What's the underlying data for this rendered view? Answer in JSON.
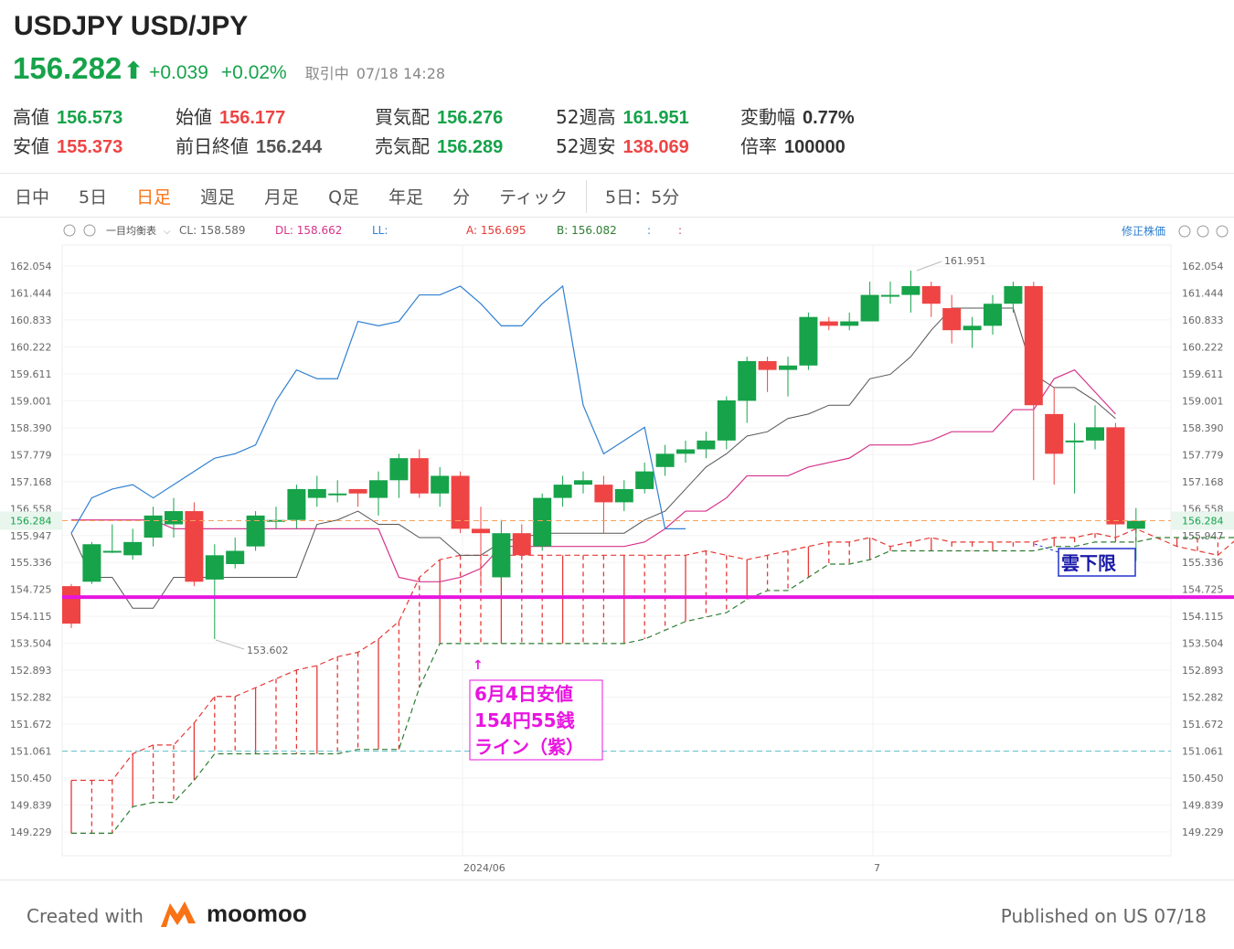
{
  "header": {
    "title": "USDJPY USD/JPY",
    "price": "156.282",
    "change": "+0.039",
    "change_pct": "+0.02%",
    "status": "取引中",
    "timestamp": "07/18 14:28"
  },
  "stats": {
    "high": {
      "label": "高値",
      "value": "156.573"
    },
    "low": {
      "label": "安値",
      "value": "155.373"
    },
    "open": {
      "label": "始値",
      "value": "156.177"
    },
    "prev_close": {
      "label": "前日終値",
      "value": "156.244"
    },
    "bid": {
      "label": "買気配",
      "value": "156.276"
    },
    "ask": {
      "label": "売気配",
      "value": "156.289"
    },
    "week52_high": {
      "label": "52週高",
      "value": "161.951"
    },
    "week52_low": {
      "label": "52週安",
      "value": "138.069"
    },
    "amplitude": {
      "label": "変動幅",
      "value": "0.77%"
    },
    "multiplier": {
      "label": "倍率",
      "value": "100000"
    }
  },
  "tabs": [
    "日中",
    "5日",
    "日足",
    "週足",
    "月足",
    "Q足",
    "年足",
    "分",
    "ティック",
    "5日：5分"
  ],
  "active_tab": "日足",
  "toolbar": {
    "indicator": "一目均衡表",
    "cl": "CL: 158.589",
    "dl": "DL: 158.662",
    "ll": "LL:",
    "a": "A: 156.695",
    "b": "B: 156.082",
    "c1": ":",
    "c2": ":",
    "adjusted": "修正株価"
  },
  "annotations": {
    "low_note": "6月4日安値\n154円55銭\nライン（紫）",
    "cloud_note": "雲下限",
    "high_label": "161.951",
    "low_label": "153.602"
  },
  "colors": {
    "up": "#16a34a",
    "down": "#ef4444",
    "purple_line": "#e815e0",
    "tenkan": "#555555",
    "kijun": "#d6338a",
    "chikou": "#2f80d1",
    "span_a": "#e53935",
    "span_b": "#2e7d32",
    "accent": "#f97316"
  },
  "footer": {
    "created": "Created with",
    "brand": "moomoo",
    "published": "Published on US 07/18"
  },
  "chart_data": {
    "type": "candlestick",
    "indicator": "一目均衡表 (Ichimoku)",
    "ylim": [
      149.0,
      162.5
    ],
    "y_ticks": [
      "162.054",
      "161.444",
      "160.833",
      "160.222",
      "159.611",
      "159.001",
      "158.390",
      "157.779",
      "157.168",
      "156.558",
      "155.947",
      "155.336",
      "154.725",
      "154.115",
      "153.504",
      "152.893",
      "152.282",
      "151.672",
      "151.061",
      "150.450",
      "149.839",
      "149.229"
    ],
    "x_ticks": [
      "2024/06",
      "7"
    ],
    "current_price": "156.284",
    "horizontal_lines": [
      {
        "name": "6月4日安値 154円55銭",
        "value": 154.55,
        "color": "#e815e0"
      },
      {
        "name": "",
        "value": 151.061,
        "color": "#5bc0c8"
      }
    ],
    "candles": [
      [
        154.8,
        153.95,
        154.85,
        153.85
      ],
      [
        154.9,
        155.75,
        155.8,
        154.85
      ],
      [
        155.6,
        155.6,
        156.2,
        155.55
      ],
      [
        155.5,
        155.8,
        156.1,
        155.4
      ],
      [
        155.9,
        156.4,
        156.6,
        155.7
      ],
      [
        156.2,
        156.5,
        156.8,
        155.9
      ],
      [
        156.5,
        154.9,
        156.7,
        154.8
      ],
      [
        154.95,
        155.5,
        155.75,
        153.6
      ],
      [
        155.3,
        155.6,
        155.9,
        155.2
      ],
      [
        155.7,
        156.4,
        156.5,
        155.6
      ],
      [
        156.3,
        156.3,
        156.6,
        156.1
      ],
      [
        156.3,
        157.0,
        157.1,
        156.1
      ],
      [
        156.8,
        157.0,
        157.3,
        156.6
      ],
      [
        156.9,
        156.9,
        157.2,
        156.7
      ],
      [
        157.0,
        156.9,
        157.0,
        156.6
      ],
      [
        156.8,
        157.2,
        157.4,
        156.4
      ],
      [
        157.2,
        157.7,
        157.8,
        156.8
      ],
      [
        157.7,
        156.9,
        157.9,
        156.8
      ],
      [
        156.9,
        157.3,
        157.5,
        156.6
      ],
      [
        157.3,
        156.1,
        157.4,
        156.0
      ],
      [
        156.1,
        156.0,
        156.6,
        154.8
      ],
      [
        155.0,
        156.0,
        156.3,
        154.8
      ],
      [
        156.0,
        155.5,
        156.2,
        155.4
      ],
      [
        155.7,
        156.8,
        156.9,
        155.6
      ],
      [
        156.8,
        157.1,
        157.3,
        156.6
      ],
      [
        157.1,
        157.2,
        157.4,
        156.9
      ],
      [
        157.1,
        156.7,
        157.3,
        156.0
      ],
      [
        156.7,
        157.0,
        157.2,
        156.5
      ],
      [
        157.0,
        157.4,
        157.6,
        156.9
      ],
      [
        157.5,
        157.8,
        158.0,
        157.3
      ],
      [
        157.8,
        157.9,
        158.1,
        157.6
      ],
      [
        157.9,
        158.1,
        158.3,
        157.7
      ],
      [
        158.1,
        159.01,
        159.1,
        157.9
      ],
      [
        159.0,
        159.9,
        160.0,
        158.5
      ],
      [
        159.9,
        159.7,
        160.0,
        159.2
      ],
      [
        159.7,
        159.8,
        160.0,
        159.1
      ],
      [
        159.8,
        160.9,
        161.0,
        159.7
      ],
      [
        160.8,
        160.7,
        160.9,
        160.6
      ],
      [
        160.7,
        160.8,
        161.0,
        160.6
      ],
      [
        160.8,
        161.4,
        161.7,
        160.8
      ],
      [
        161.4,
        161.4,
        161.7,
        161.2
      ],
      [
        161.4,
        161.6,
        161.95,
        161.0
      ],
      [
        161.6,
        161.2,
        161.7,
        160.9
      ],
      [
        161.1,
        160.6,
        161.4,
        160.3
      ],
      [
        160.6,
        160.7,
        160.9,
        160.2
      ],
      [
        160.7,
        161.2,
        161.4,
        160.5
      ],
      [
        161.2,
        161.6,
        161.7,
        161.0
      ],
      [
        161.6,
        158.9,
        161.7,
        157.2
      ],
      [
        158.7,
        157.8,
        159.3,
        157.1
      ],
      [
        158.1,
        158.1,
        158.5,
        156.9
      ],
      [
        158.1,
        158.4,
        158.9,
        157.9
      ],
      [
        158.4,
        156.2,
        158.5,
        155.9
      ],
      [
        156.1,
        156.28,
        156.57,
        155.37
      ]
    ],
    "tenkan": [
      156.0,
      155.0,
      155.0,
      154.3,
      154.3,
      155.0,
      155.0,
      155.0,
      155.0,
      155.0,
      155.0,
      155.0,
      156.2,
      156.3,
      156.5,
      156.2,
      156.2,
      155.9,
      155.9,
      155.5,
      155.5,
      155.8,
      155.9,
      156.0,
      156.0,
      156.0,
      156.0,
      156.0,
      156.3,
      156.5,
      157.0,
      157.5,
      157.8,
      158.2,
      158.3,
      158.6,
      158.7,
      158.9,
      158.9,
      159.5,
      159.6,
      160.0,
      160.6,
      161.1,
      161.1,
      161.1,
      161.1,
      159.6,
      159.3,
      159.3,
      159.0,
      158.6
    ],
    "kijun": [
      156.3,
      156.3,
      156.3,
      156.3,
      156.3,
      156.1,
      156.1,
      156.1,
      156.1,
      156.1,
      156.1,
      156.1,
      156.1,
      156.1,
      156.1,
      156.1,
      155.0,
      154.9,
      154.9,
      155.0,
      155.2,
      155.7,
      155.7,
      155.7,
      155.7,
      155.7,
      155.7,
      155.7,
      155.8,
      156.1,
      156.5,
      156.5,
      156.8,
      157.3,
      157.3,
      157.3,
      157.5,
      157.6,
      157.7,
      158.0,
      158.0,
      158.0,
      158.1,
      158.3,
      158.3,
      158.3,
      158.8,
      158.8,
      159.5,
      159.7,
      159.2,
      158.7
    ],
    "chikou": [
      156.0,
      156.8,
      157.0,
      157.1,
      156.8,
      157.1,
      157.4,
      157.7,
      157.8,
      158.0,
      159.0,
      159.7,
      159.5,
      159.5,
      160.8,
      160.7,
      160.8,
      161.4,
      161.4,
      161.6,
      161.2,
      160.7,
      160.7,
      161.2,
      161.6,
      158.9,
      157.8,
      158.1,
      158.4,
      156.1,
      156.1
    ],
    "span_a": [
      150.4,
      150.4,
      150.4,
      151.0,
      151.2,
      151.2,
      151.7,
      152.3,
      152.3,
      152.5,
      152.7,
      152.9,
      153.0,
      153.2,
      153.3,
      153.6,
      154.0,
      155.0,
      155.4,
      155.5,
      155.5,
      155.5,
      155.5,
      155.5,
      155.5,
      155.5,
      155.5,
      155.5,
      155.5,
      155.5,
      155.5,
      155.6,
      155.5,
      155.4,
      155.5,
      155.6,
      155.7,
      155.8,
      155.8,
      155.9,
      155.7,
      155.8,
      155.9,
      155.8,
      155.8,
      155.8,
      155.8,
      155.8,
      155.9,
      155.9,
      156.0,
      155.9,
      156.1,
      155.9,
      155.7,
      155.6,
      155.5,
      155.9,
      155.9,
      155.9,
      156.0,
      155.9,
      156.3,
      156.7
    ],
    "span_b": [
      149.2,
      149.2,
      149.2,
      149.8,
      149.9,
      149.9,
      150.4,
      151.0,
      151.0,
      151.0,
      151.0,
      151.0,
      151.0,
      151.0,
      151.1,
      151.1,
      151.1,
      152.5,
      153.5,
      153.5,
      153.5,
      153.5,
      153.5,
      153.5,
      153.5,
      153.5,
      153.5,
      153.5,
      153.6,
      153.8,
      154.0,
      154.1,
      154.2,
      154.5,
      154.7,
      154.7,
      155.0,
      155.3,
      155.3,
      155.4,
      155.6,
      155.6,
      155.6,
      155.6,
      155.6,
      155.6,
      155.6,
      155.6,
      155.7,
      155.7,
      155.8,
      155.8,
      155.8,
      155.9,
      155.9,
      155.9,
      155.9,
      155.9,
      155.9,
      155.9,
      155.9,
      155.9,
      155.9,
      155.9
    ]
  }
}
